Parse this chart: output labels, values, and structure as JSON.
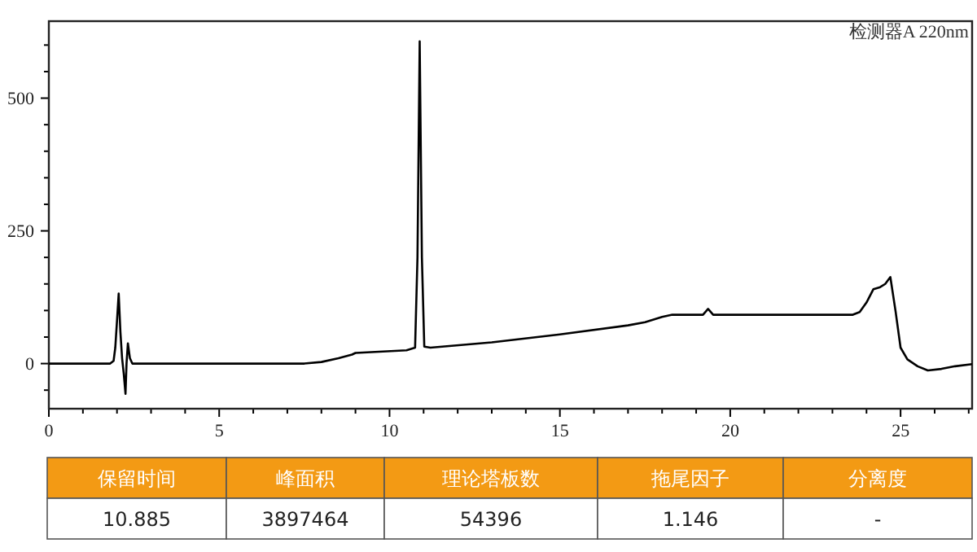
{
  "chart_data": {
    "type": "line",
    "x": [
      0,
      1.8,
      1.9,
      1.95,
      2.0,
      2.05,
      2.1,
      2.15,
      2.2,
      2.25,
      2.28,
      2.32,
      2.38,
      2.45,
      7.5,
      8.0,
      8.5,
      8.9,
      9.0,
      10.5,
      10.75,
      10.82,
      10.885,
      10.95,
      11.02,
      11.2,
      13,
      15,
      17,
      17.5,
      18,
      18.3,
      19.2,
      19.35,
      19.5,
      23.6,
      23.8,
      24.0,
      24.2,
      24.4,
      24.55,
      24.7,
      24.85,
      25.0,
      25.2,
      25.5,
      25.8,
      26.2,
      26.6,
      27.1
    ],
    "series": [
      {
        "color": "#000000",
        "values": [
          0,
          0,
          5,
          30,
          80,
          132,
          60,
          10,
          -20,
          -57,
          0,
          38,
          10,
          0,
          0,
          3,
          10,
          17,
          20,
          25,
          30,
          200,
          607,
          200,
          32,
          30,
          40,
          55,
          72,
          78,
          88,
          92,
          92,
          103,
          92,
          92,
          97,
          115,
          140,
          144,
          150,
          163,
          100,
          30,
          8,
          -5,
          -13,
          -10,
          -5,
          -1
        ]
      }
    ],
    "xlim": [
      0,
      27.1
    ],
    "ylim": [
      -85,
      645
    ],
    "xticks": [
      0,
      {
        "value": 1,
        "label": null
      },
      {
        "value": 2,
        "label": null
      },
      {
        "value": 3,
        "label": null
      },
      {
        "value": 4,
        "label": null
      },
      5,
      {
        "value": 6,
        "label": null
      },
      {
        "value": 7,
        "label": null
      },
      {
        "value": 8,
        "label": null
      },
      {
        "value": 9,
        "label": null
      },
      10,
      {
        "value": 11,
        "label": null
      },
      {
        "value": 12,
        "label": null
      },
      {
        "value": 13,
        "label": null
      },
      {
        "value": 14,
        "label": null
      },
      15,
      {
        "value": 16,
        "label": null
      },
      {
        "value": 17,
        "label": null
      },
      {
        "value": 18,
        "label": null
      },
      {
        "value": 19,
        "label": null
      },
      20,
      {
        "value": 21,
        "label": null
      },
      {
        "value": 22,
        "label": null
      },
      {
        "value": 23,
        "label": null
      },
      {
        "value": 24,
        "label": null
      },
      25,
      {
        "value": 26,
        "label": null
      },
      {
        "value": 27,
        "label": null
      }
    ],
    "yticks": [
      {
        "value": -50,
        "label": null
      },
      0,
      {
        "value": 50,
        "label": null
      },
      {
        "value": 100,
        "label": null
      },
      {
        "value": 150,
        "label": null
      },
      {
        "value": 200,
        "label": null
      },
      250,
      {
        "value": 300,
        "label": null
      },
      {
        "value": 350,
        "label": null
      },
      {
        "value": 400,
        "label": null
      },
      {
        "value": 450,
        "label": null
      },
      500,
      {
        "value": 550,
        "label": null
      },
      {
        "value": 600,
        "label": null
      }
    ],
    "grid": false,
    "annotations": [
      "检测器A 220nm",
      "保留时间",
      "峰面积",
      "理论塔板数",
      "拖尾因子",
      "分离度",
      "10.885",
      "3897464",
      "54396",
      "1.146",
      "-"
    ]
  }
}
